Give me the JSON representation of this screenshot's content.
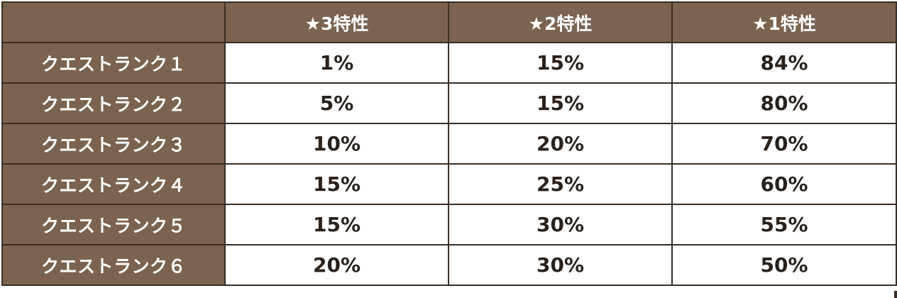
{
  "table": {
    "header": {
      "corner": "",
      "columns": [
        "★3特性",
        "★2特性",
        "★1特性"
      ]
    },
    "rows": [
      {
        "label": "クエストランク１",
        "cells": [
          "1%",
          "15%",
          "84%"
        ]
      },
      {
        "label": "クエストランク２",
        "cells": [
          "5%",
          "15%",
          "80%"
        ]
      },
      {
        "label": "クエストランク３",
        "cells": [
          "10%",
          "20%",
          "70%"
        ]
      },
      {
        "label": "クエストランク４",
        "cells": [
          "15%",
          "25%",
          "60%"
        ]
      },
      {
        "label": "クエストランク５",
        "cells": [
          "15%",
          "30%",
          "55%"
        ]
      },
      {
        "label": "クエストランク６",
        "cells": [
          "20%",
          "30%",
          "50%"
        ]
      }
    ]
  },
  "colors": {
    "header_background": "#7a6350",
    "header_text": "#ffffff",
    "border": "#3a2e24",
    "cell_background": "#ffffff",
    "cell_text": "#2a211b"
  }
}
